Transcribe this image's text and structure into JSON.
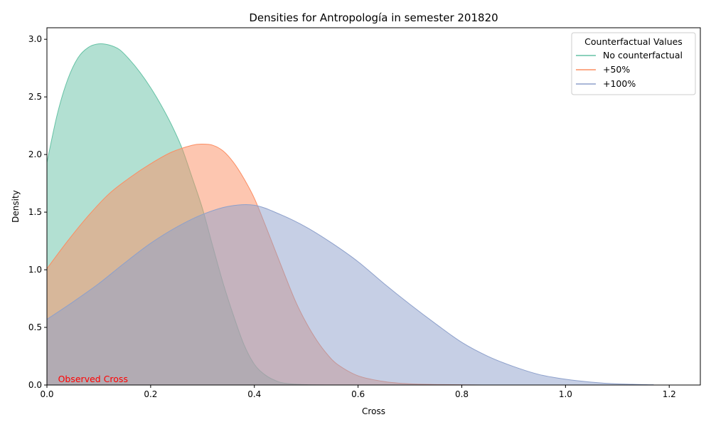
{
  "chart_data": {
    "type": "area",
    "title": "Densities for Antropología in semester 201820",
    "xlabel": "Cross",
    "ylabel": "Density",
    "xlim": [
      0,
      1.26
    ],
    "ylim": [
      0,
      3.1
    ],
    "x_ticks": [
      "0.0",
      "0.2",
      "0.4",
      "0.6",
      "0.8",
      "1.0",
      "1.2"
    ],
    "y_ticks": [
      "0.0",
      "0.5",
      "1.0",
      "1.5",
      "2.0",
      "2.5",
      "3.0"
    ],
    "grid": false,
    "legend": {
      "title": "Counterfactual Values",
      "placement": "top-right"
    },
    "annotation": {
      "text": "Observed Cross",
      "x": 0.02,
      "y": 0.0,
      "color": "#ff0000"
    },
    "series": [
      {
        "name": "No counterfactual",
        "color": "#66c2a5",
        "points": [
          [
            0.0,
            1.93
          ],
          [
            0.02,
            2.35
          ],
          [
            0.04,
            2.65
          ],
          [
            0.06,
            2.84
          ],
          [
            0.08,
            2.93
          ],
          [
            0.1,
            2.96
          ],
          [
            0.12,
            2.95
          ],
          [
            0.14,
            2.91
          ],
          [
            0.16,
            2.82
          ],
          [
            0.18,
            2.71
          ],
          [
            0.2,
            2.58
          ],
          [
            0.22,
            2.43
          ],
          [
            0.24,
            2.26
          ],
          [
            0.26,
            2.06
          ],
          [
            0.28,
            1.8
          ],
          [
            0.3,
            1.53
          ],
          [
            0.32,
            1.2
          ],
          [
            0.34,
            0.88
          ],
          [
            0.36,
            0.6
          ],
          [
            0.38,
            0.35
          ],
          [
            0.4,
            0.18
          ],
          [
            0.42,
            0.09
          ],
          [
            0.44,
            0.04
          ],
          [
            0.46,
            0.015
          ],
          [
            0.5,
            0.003
          ],
          [
            0.55,
            0.0
          ]
        ]
      },
      {
        "name": "+50%",
        "color": "#fc8d62",
        "points": [
          [
            0.0,
            1.01
          ],
          [
            0.04,
            1.25
          ],
          [
            0.08,
            1.47
          ],
          [
            0.12,
            1.66
          ],
          [
            0.16,
            1.8
          ],
          [
            0.2,
            1.92
          ],
          [
            0.24,
            2.02
          ],
          [
            0.28,
            2.08
          ],
          [
            0.3,
            2.09
          ],
          [
            0.32,
            2.08
          ],
          [
            0.34,
            2.03
          ],
          [
            0.36,
            1.93
          ],
          [
            0.38,
            1.79
          ],
          [
            0.4,
            1.62
          ],
          [
            0.42,
            1.4
          ],
          [
            0.44,
            1.17
          ],
          [
            0.46,
            0.94
          ],
          [
            0.48,
            0.72
          ],
          [
            0.5,
            0.54
          ],
          [
            0.52,
            0.39
          ],
          [
            0.54,
            0.27
          ],
          [
            0.56,
            0.18
          ],
          [
            0.6,
            0.08
          ],
          [
            0.65,
            0.03
          ],
          [
            0.7,
            0.01
          ],
          [
            0.76,
            0.004
          ],
          [
            0.84,
            0.0
          ]
        ]
      },
      {
        "name": "+100%",
        "color": "#8da0cb",
        "points": [
          [
            0.0,
            0.57
          ],
          [
            0.05,
            0.72
          ],
          [
            0.1,
            0.88
          ],
          [
            0.15,
            1.06
          ],
          [
            0.2,
            1.23
          ],
          [
            0.25,
            1.37
          ],
          [
            0.3,
            1.48
          ],
          [
            0.35,
            1.55
          ],
          [
            0.4,
            1.56
          ],
          [
            0.45,
            1.48
          ],
          [
            0.5,
            1.37
          ],
          [
            0.55,
            1.23
          ],
          [
            0.6,
            1.07
          ],
          [
            0.65,
            0.88
          ],
          [
            0.7,
            0.7
          ],
          [
            0.75,
            0.53
          ],
          [
            0.8,
            0.37
          ],
          [
            0.85,
            0.25
          ],
          [
            0.9,
            0.16
          ],
          [
            0.95,
            0.09
          ],
          [
            1.0,
            0.05
          ],
          [
            1.05,
            0.025
          ],
          [
            1.1,
            0.01
          ],
          [
            1.17,
            0.002
          ]
        ]
      }
    ]
  }
}
